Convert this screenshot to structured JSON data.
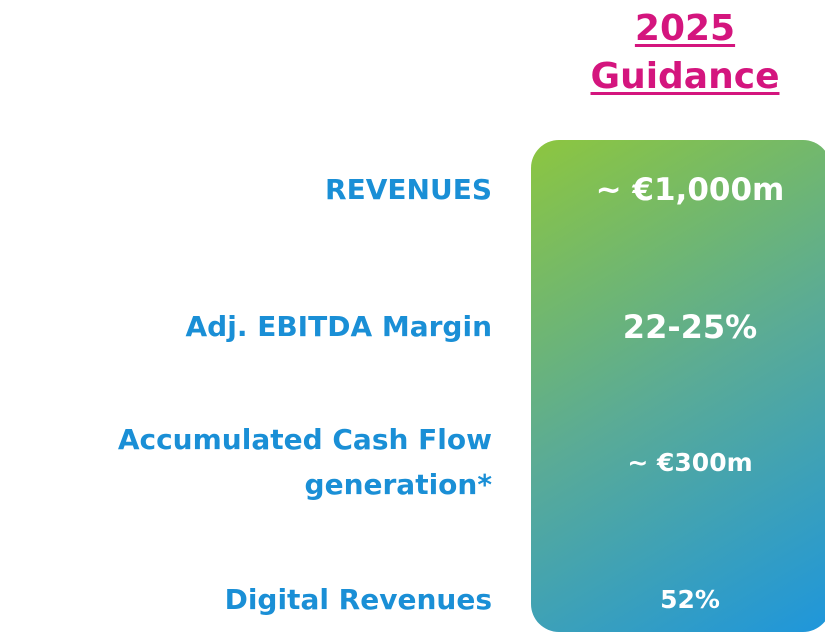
{
  "header": {
    "lines": [
      "2025",
      "Guidance"
    ]
  },
  "rows": [
    {
      "label_lines": [
        "REVENUES"
      ],
      "value": "~ €1,000m"
    },
    {
      "label_lines": [
        "Adj. EBITDA Margin"
      ],
      "value": "22-25%"
    },
    {
      "label_lines": [
        "Accumulated Cash Flow",
        "generation*"
      ],
      "value": "~ €300m"
    },
    {
      "label_lines": [
        "Digital Revenues"
      ],
      "value": "52%"
    }
  ]
}
